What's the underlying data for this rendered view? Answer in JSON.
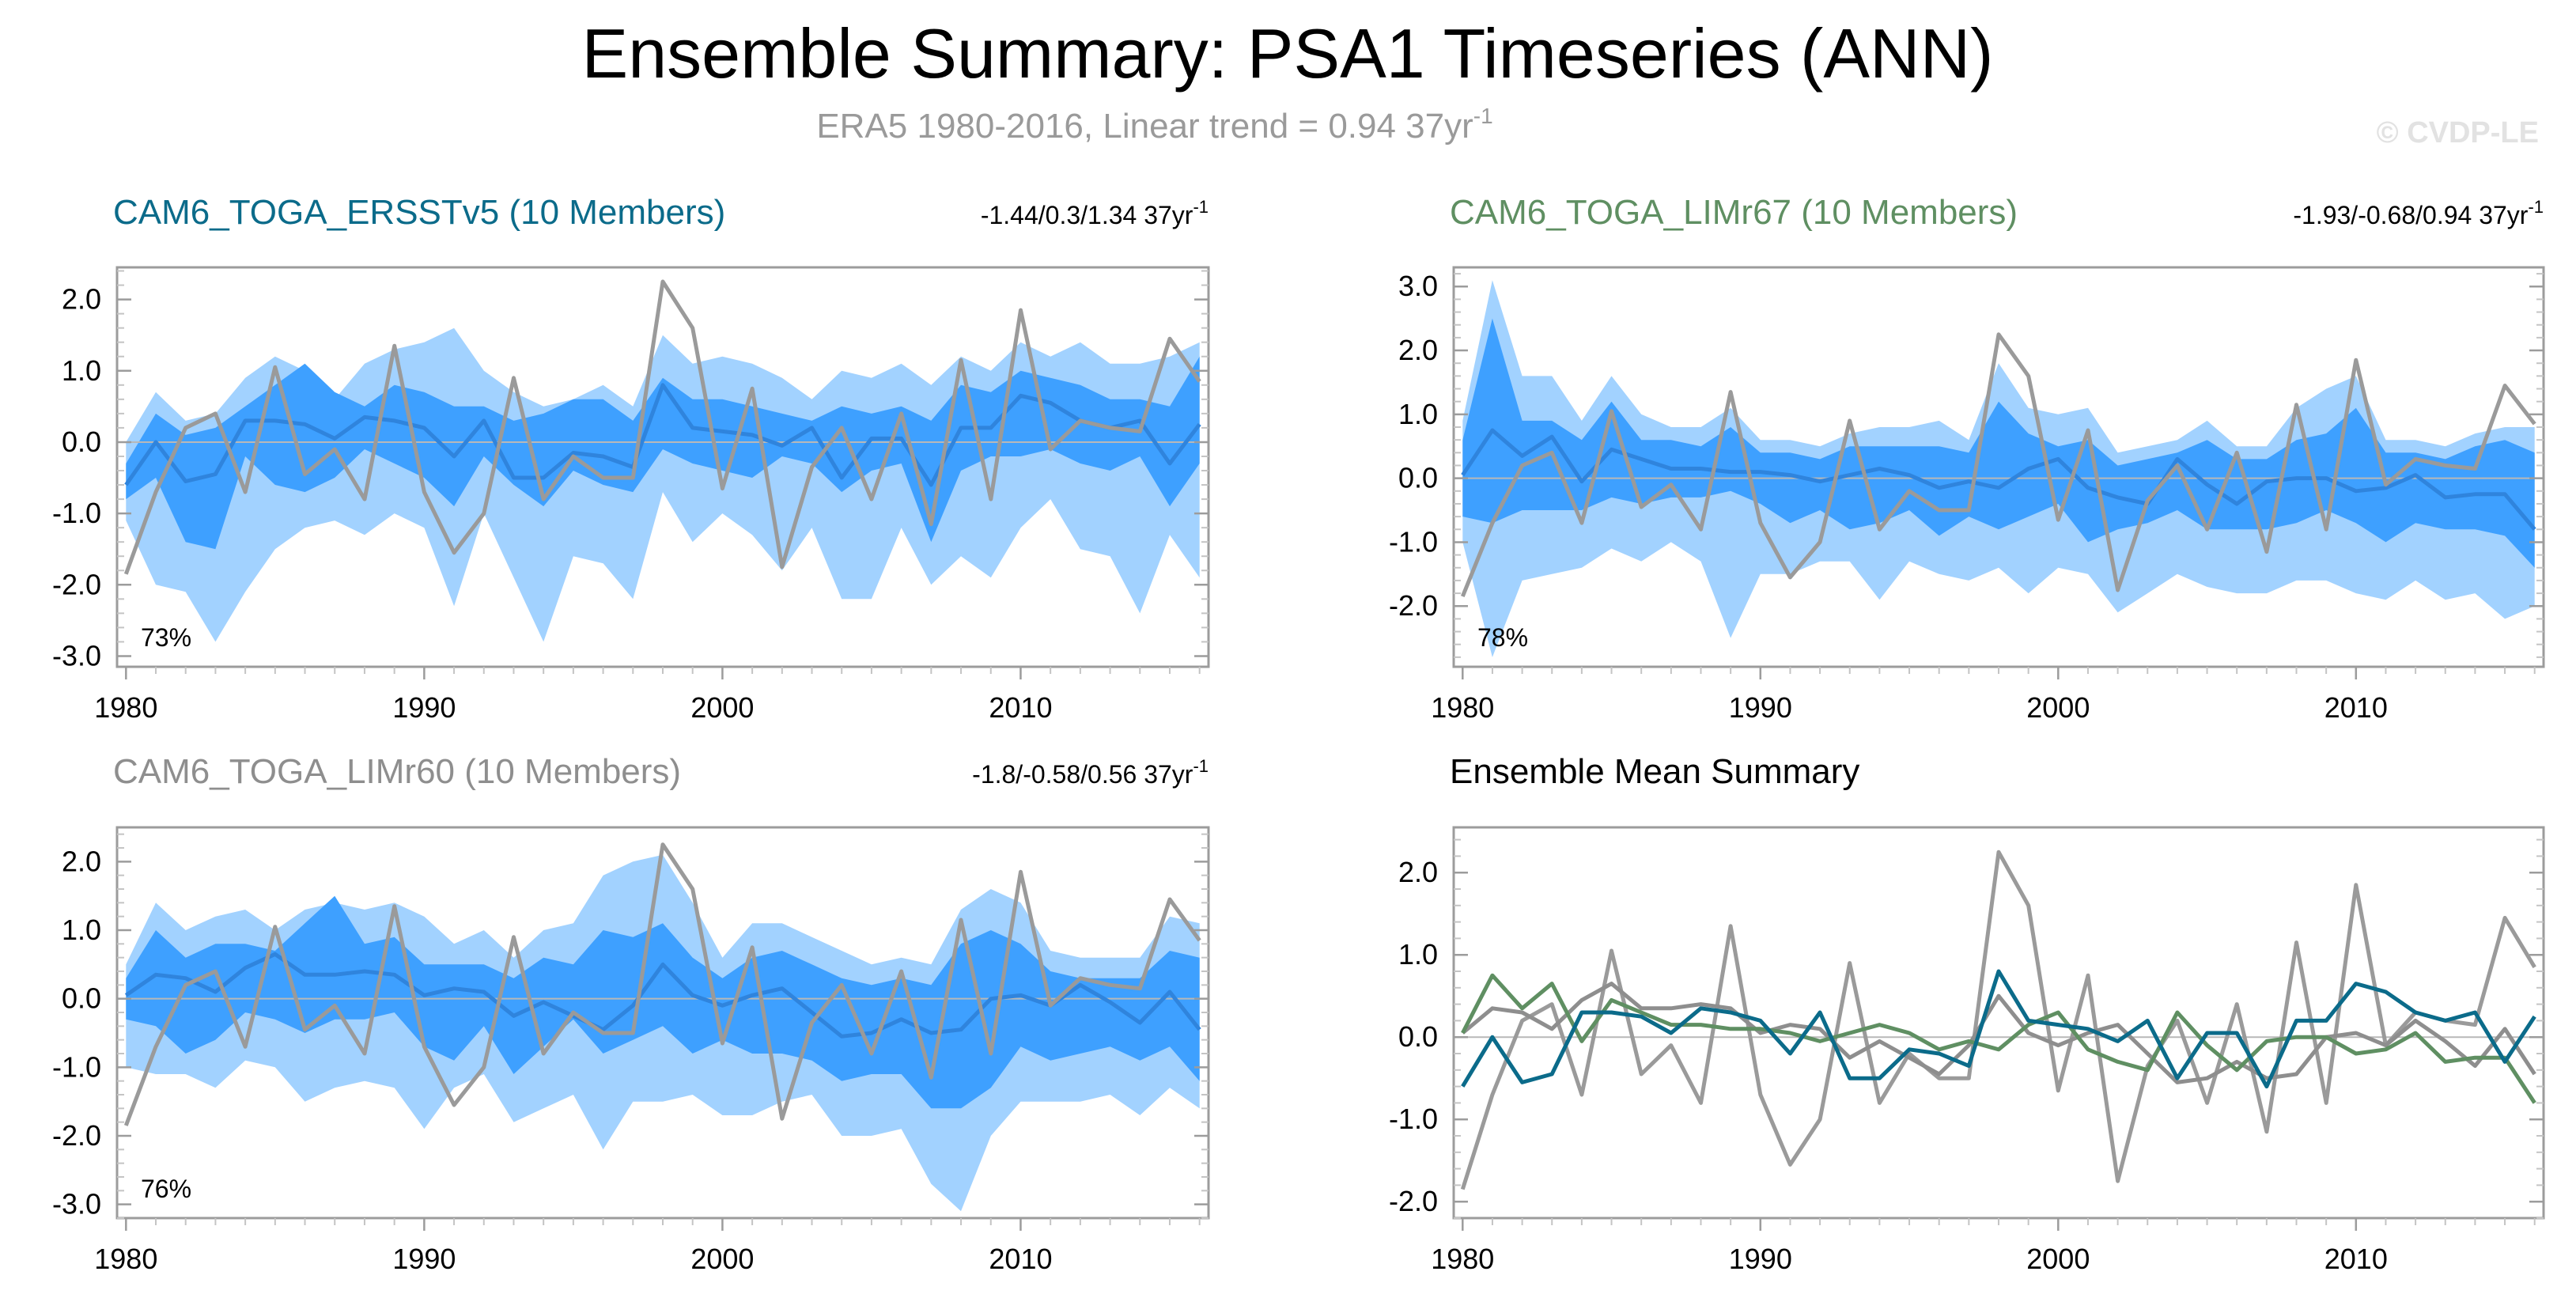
{
  "title": "Ensemble Summary: PSA1 Timeseries (ANN)",
  "subtitle": {
    "text": "ERA5 1980-2016, Linear trend = 0.94 37yr",
    "sup": "-1"
  },
  "watermark": "© CVDP-LE",
  "colors": {
    "outer_band": "#a2d2ff",
    "inner_band": "#3ea0ff",
    "ens_mean_line": "#2f84dd",
    "obs": "#9a9a9a",
    "ersst": "#0b6b8a",
    "limr67": "#5f8f62",
    "limr60": "#8e8e8e",
    "axis": "#9c9c9c"
  },
  "chart_data": [
    {
      "id": "ersst",
      "type": "area",
      "title": "CAM6_TOGA_ERSSTv5 (10 Members)",
      "title_color": "#0b6b8a",
      "trend": "-1.44/0.3/1.34 37yr",
      "trend_sup": "-1",
      "percent": "73%",
      "ylim": [
        -3.15,
        2.45
      ],
      "yticks": [
        "2.0",
        "1.0",
        "0.0",
        "-1.0",
        "-2.0",
        "-3.0"
      ],
      "ytick_values": [
        2,
        1,
        0,
        -1,
        -2,
        -3
      ],
      "xticks": [
        "1980",
        "1990",
        "2000",
        "2010"
      ],
      "xtick_values": [
        1980,
        1990,
        2000,
        2010
      ],
      "xlim": [
        1979.7,
        2016.3
      ],
      "x_start": 1980,
      "outer_upper": [
        0.0,
        0.7,
        0.3,
        0.4,
        0.9,
        1.2,
        1.0,
        0.6,
        1.1,
        1.3,
        1.4,
        1.6,
        1.0,
        0.7,
        0.5,
        0.6,
        0.8,
        0.5,
        1.5,
        1.1,
        1.2,
        1.1,
        0.9,
        0.6,
        1.0,
        0.9,
        1.1,
        0.8,
        1.2,
        1.0,
        1.4,
        1.2,
        1.4,
        1.1,
        1.1,
        1.2,
        1.4
      ],
      "inner_upper": [
        -0.3,
        0.4,
        0.1,
        0.2,
        0.5,
        0.8,
        1.1,
        0.7,
        0.5,
        0.8,
        0.7,
        0.5,
        0.5,
        0.3,
        0.4,
        0.6,
        0.6,
        0.3,
        0.9,
        0.6,
        0.6,
        0.5,
        0.4,
        0.3,
        0.5,
        0.4,
        0.5,
        0.3,
        0.8,
        0.7,
        1.0,
        0.9,
        0.8,
        0.6,
        0.6,
        0.5,
        1.2
      ],
      "inner_lower": [
        -0.8,
        -0.5,
        -1.4,
        -1.5,
        -0.2,
        -0.6,
        -0.7,
        -0.5,
        -0.1,
        -0.3,
        -0.5,
        -0.9,
        -0.2,
        -0.6,
        -0.9,
        -0.4,
        -0.6,
        -0.7,
        -0.1,
        -0.3,
        -0.4,
        -0.5,
        -0.2,
        -0.3,
        -0.7,
        -0.4,
        -0.3,
        -1.4,
        -0.4,
        -0.2,
        -0.2,
        -0.1,
        -0.3,
        -0.4,
        -0.2,
        -0.9,
        -0.3
      ],
      "outer_lower": [
        -1.1,
        -2.0,
        -2.1,
        -2.8,
        -2.1,
        -1.5,
        -1.2,
        -1.1,
        -1.3,
        -1.0,
        -1.2,
        -2.3,
        -1.0,
        -1.9,
        -2.8,
        -1.6,
        -1.7,
        -2.2,
        -0.7,
        -1.4,
        -1.0,
        -1.3,
        -1.8,
        -1.2,
        -2.2,
        -2.2,
        -1.2,
        -2.0,
        -1.6,
        -1.9,
        -1.2,
        -0.8,
        -1.5,
        -1.6,
        -2.4,
        -1.3,
        -1.9
      ],
      "ens_mean": [
        -0.6,
        0.0,
        -0.55,
        -0.45,
        0.3,
        0.3,
        0.25,
        0.05,
        0.35,
        0.3,
        0.2,
        -0.2,
        0.3,
        -0.5,
        -0.5,
        -0.15,
        -0.2,
        -0.35,
        0.8,
        0.2,
        0.15,
        0.1,
        -0.05,
        0.2,
        -0.5,
        0.05,
        0.05,
        -0.6,
        0.2,
        0.2,
        0.65,
        0.55,
        0.3,
        0.2,
        0.3,
        -0.3,
        0.25
      ],
      "series": [
        {
          "name": "ERA5",
          "values": [
            -1.85,
            -0.7,
            0.2,
            0.4,
            -0.7,
            1.05,
            -0.45,
            -0.1,
            -0.8,
            1.35,
            -0.7,
            -1.55,
            -1.0,
            0.9,
            -0.8,
            -0.2,
            -0.5,
            -0.5,
            2.25,
            1.6,
            -0.65,
            0.75,
            -1.75,
            -0.35,
            0.2,
            -0.8,
            0.4,
            -1.15,
            1.15,
            -0.8,
            1.85,
            -0.1,
            0.3,
            0.2,
            0.15,
            1.45,
            0.85
          ]
        }
      ]
    },
    {
      "id": "limr67",
      "type": "area",
      "title": "CAM6_TOGA_LIMr67 (10 Members)",
      "title_color": "#5f8f62",
      "trend": "-1.93/-0.68/0.94 37yr",
      "trend_sup": "-1",
      "percent": "78%",
      "ylim": [
        -2.95,
        3.3
      ],
      "yticks": [
        "3.0",
        "2.0",
        "1.0",
        "0.0",
        "-1.0",
        "-2.0"
      ],
      "ytick_values": [
        3,
        2,
        1,
        0,
        -1,
        -2
      ],
      "xticks": [
        "1980",
        "1990",
        "2000",
        "2010"
      ],
      "xtick_values": [
        1980,
        1990,
        2000,
        2010
      ],
      "xlim": [
        1979.7,
        2016.3
      ],
      "x_start": 1980,
      "outer_upper": [
        0.9,
        3.1,
        1.6,
        1.6,
        0.9,
        1.6,
        1.0,
        0.8,
        0.8,
        1.1,
        0.6,
        0.6,
        0.5,
        0.7,
        0.8,
        0.8,
        0.9,
        0.6,
        1.8,
        1.1,
        1.0,
        1.1,
        0.4,
        0.5,
        0.6,
        0.9,
        0.5,
        0.5,
        1.1,
        1.4,
        1.6,
        0.6,
        0.6,
        0.5,
        0.7,
        0.8,
        0.8
      ],
      "inner_upper": [
        0.6,
        2.5,
        0.9,
        0.9,
        0.6,
        1.2,
        0.6,
        0.6,
        0.5,
        0.8,
        0.4,
        0.4,
        0.3,
        0.5,
        0.5,
        0.5,
        0.5,
        0.4,
        1.2,
        0.7,
        0.5,
        0.6,
        0.2,
        0.3,
        0.4,
        0.6,
        0.3,
        0.3,
        0.6,
        0.7,
        1.1,
        0.4,
        0.4,
        0.3,
        0.5,
        0.6,
        0.4
      ],
      "inner_lower": [
        -0.6,
        -0.7,
        -0.5,
        -0.5,
        -0.5,
        -0.3,
        -0.4,
        -0.3,
        -0.3,
        -0.2,
        -0.4,
        -0.7,
        -0.5,
        -0.8,
        -0.7,
        -0.5,
        -0.9,
        -0.6,
        -0.8,
        -0.6,
        -0.4,
        -1.0,
        -0.8,
        -0.7,
        -0.5,
        -0.8,
        -0.8,
        -0.8,
        -0.7,
        -0.5,
        -0.7,
        -1.0,
        -0.7,
        -0.8,
        -0.8,
        -0.9,
        -1.4
      ],
      "outer_lower": [
        -1.0,
        -2.8,
        -1.6,
        -1.5,
        -1.4,
        -1.1,
        -1.3,
        -1.0,
        -1.3,
        -2.5,
        -1.5,
        -1.5,
        -1.3,
        -1.3,
        -1.9,
        -1.3,
        -1.5,
        -1.6,
        -1.4,
        -1.8,
        -1.4,
        -1.5,
        -2.1,
        -1.8,
        -1.5,
        -1.7,
        -1.8,
        -1.8,
        -1.6,
        -1.6,
        -1.8,
        -1.9,
        -1.6,
        -1.9,
        -1.8,
        -2.2,
        -2.0
      ],
      "ens_mean": [
        0.05,
        0.75,
        0.35,
        0.65,
        -0.05,
        0.45,
        0.3,
        0.15,
        0.15,
        0.1,
        0.1,
        0.05,
        -0.05,
        0.05,
        0.15,
        0.05,
        -0.15,
        -0.05,
        -0.15,
        0.15,
        0.3,
        -0.15,
        -0.3,
        -0.4,
        0.3,
        -0.1,
        -0.4,
        -0.05,
        0.0,
        0.0,
        -0.2,
        -0.15,
        0.05,
        -0.3,
        -0.25,
        -0.25,
        -0.8
      ],
      "series": [
        {
          "name": "ERA5",
          "values": [
            -1.85,
            -0.7,
            0.2,
            0.4,
            -0.7,
            1.05,
            -0.45,
            -0.1,
            -0.8,
            1.35,
            -0.7,
            -1.55,
            -1.0,
            0.9,
            -0.8,
            -0.2,
            -0.5,
            -0.5,
            2.25,
            1.6,
            -0.65,
            0.75,
            -1.75,
            -0.35,
            0.2,
            -0.8,
            0.4,
            -1.15,
            1.15,
            -0.8,
            1.85,
            -0.1,
            0.3,
            0.2,
            0.15,
            1.45,
            0.85
          ]
        }
      ]
    },
    {
      "id": "limr60",
      "type": "area",
      "title": "CAM6_TOGA_LIMr60 (10 Members)",
      "title_color": "#8e8e8e",
      "trend": "-1.8/-0.58/0.56 37yr",
      "trend_sup": "-1",
      "percent": "76%",
      "ylim": [
        -3.2,
        2.5
      ],
      "yticks": [
        "2.0",
        "1.0",
        "0.0",
        "-1.0",
        "-2.0",
        "-3.0"
      ],
      "ytick_values": [
        2,
        1,
        0,
        -1,
        -2,
        -3
      ],
      "xticks": [
        "1980",
        "1990",
        "2000",
        "2010"
      ],
      "xtick_values": [
        1980,
        1990,
        2000,
        2010
      ],
      "xlim": [
        1979.7,
        2016.3
      ],
      "x_start": 1980,
      "outer_upper": [
        0.5,
        1.4,
        1.0,
        1.2,
        1.3,
        1.0,
        1.3,
        1.4,
        1.3,
        1.4,
        1.2,
        0.8,
        1.0,
        0.6,
        1.0,
        1.1,
        1.8,
        2.0,
        2.1,
        1.4,
        0.6,
        1.1,
        1.1,
        0.9,
        0.7,
        0.5,
        0.6,
        0.5,
        1.3,
        1.6,
        1.4,
        0.7,
        0.6,
        0.6,
        0.6,
        1.2,
        1.1
      ],
      "inner_upper": [
        0.3,
        1.0,
        0.6,
        0.8,
        0.8,
        0.7,
        1.1,
        1.5,
        0.8,
        0.9,
        0.5,
        0.5,
        0.5,
        0.3,
        0.6,
        0.5,
        1.0,
        0.9,
        1.1,
        0.6,
        0.3,
        0.6,
        0.7,
        0.5,
        0.3,
        0.2,
        0.3,
        0.2,
        0.8,
        1.0,
        0.8,
        0.4,
        0.3,
        0.3,
        0.3,
        0.7,
        0.6
      ],
      "inner_lower": [
        -0.3,
        -0.4,
        -0.8,
        -0.6,
        -0.2,
        -0.3,
        -0.5,
        -0.3,
        -0.3,
        -0.2,
        -0.7,
        -0.9,
        -0.4,
        -1.1,
        -0.7,
        -0.3,
        -0.8,
        -0.6,
        -0.4,
        -0.8,
        -0.6,
        -0.8,
        -0.8,
        -0.9,
        -1.2,
        -1.1,
        -1.1,
        -1.6,
        -1.6,
        -1.3,
        -0.7,
        -0.9,
        -0.8,
        -0.7,
        -0.9,
        -0.7,
        -1.2
      ],
      "outer_lower": [
        -1.0,
        -1.1,
        -1.1,
        -1.3,
        -0.9,
        -1.0,
        -1.5,
        -1.3,
        -1.2,
        -1.3,
        -1.9,
        -1.3,
        -1.1,
        -1.8,
        -1.6,
        -1.4,
        -2.2,
        -1.5,
        -1.5,
        -1.4,
        -1.7,
        -1.7,
        -1.5,
        -1.4,
        -2.0,
        -2.0,
        -1.9,
        -2.7,
        -3.1,
        -2.0,
        -1.5,
        -1.5,
        -1.5,
        -1.4,
        -1.7,
        -1.3,
        -1.6
      ],
      "ens_mean": [
        0.05,
        0.35,
        0.3,
        0.1,
        0.45,
        0.65,
        0.35,
        0.35,
        0.4,
        0.35,
        0.05,
        0.15,
        0.1,
        -0.25,
        -0.05,
        -0.25,
        -0.45,
        -0.1,
        0.5,
        0.05,
        -0.1,
        0.05,
        0.15,
        -0.2,
        -0.55,
        -0.5,
        -0.3,
        -0.5,
        -0.45,
        0.0,
        0.05,
        -0.1,
        0.2,
        -0.05,
        -0.35,
        0.1,
        -0.45
      ],
      "series": [
        {
          "name": "ERA5",
          "values": [
            -1.85,
            -0.7,
            0.2,
            0.4,
            -0.7,
            1.05,
            -0.45,
            -0.1,
            -0.8,
            1.35,
            -0.7,
            -1.55,
            -1.0,
            0.9,
            -0.8,
            -0.2,
            -0.5,
            -0.5,
            2.25,
            1.6,
            -0.65,
            0.75,
            -1.75,
            -0.35,
            0.2,
            -0.8,
            0.4,
            -1.15,
            1.15,
            -0.8,
            1.85,
            -0.1,
            0.3,
            0.2,
            0.15,
            1.45,
            0.85
          ]
        }
      ]
    },
    {
      "id": "mean",
      "type": "line",
      "title": "Ensemble Mean Summary",
      "title_color": "#000000",
      "ylim": [
        -2.2,
        2.55
      ],
      "yticks": [
        "2.0",
        "1.0",
        "0.0",
        "-1.0",
        "-2.0"
      ],
      "ytick_values": [
        2,
        1,
        0,
        -1,
        -2
      ],
      "xticks": [
        "1980",
        "1990",
        "2000",
        "2010"
      ],
      "xtick_values": [
        1980,
        1990,
        2000,
        2010
      ],
      "xlim": [
        1979.7,
        2016.3
      ],
      "x_start": 1980,
      "series": [
        {
          "name": "ERA5",
          "color": "#9a9a9a",
          "values": [
            -1.85,
            -0.7,
            0.2,
            0.4,
            -0.7,
            1.05,
            -0.45,
            -0.1,
            -0.8,
            1.35,
            -0.7,
            -1.55,
            -1.0,
            0.9,
            -0.8,
            -0.2,
            -0.5,
            -0.5,
            2.25,
            1.6,
            -0.65,
            0.75,
            -1.75,
            -0.35,
            0.2,
            -0.8,
            0.4,
            -1.15,
            1.15,
            -0.8,
            1.85,
            -0.1,
            0.3,
            0.2,
            0.15,
            1.45,
            0.85
          ]
        },
        {
          "name": "CAM6_TOGA_LIMr60",
          "color": "#8e8e8e",
          "values": [
            0.05,
            0.35,
            0.3,
            0.1,
            0.45,
            0.65,
            0.35,
            0.35,
            0.4,
            0.35,
            0.05,
            0.15,
            0.1,
            -0.25,
            -0.05,
            -0.25,
            -0.45,
            -0.1,
            0.5,
            0.05,
            -0.1,
            0.05,
            0.15,
            -0.2,
            -0.55,
            -0.5,
            -0.3,
            -0.5,
            -0.45,
            0.0,
            0.05,
            -0.1,
            0.2,
            -0.05,
            -0.35,
            0.1,
            -0.45
          ]
        },
        {
          "name": "CAM6_TOGA_LIMr67",
          "color": "#5f8f62",
          "values": [
            0.05,
            0.75,
            0.35,
            0.65,
            -0.05,
            0.45,
            0.3,
            0.15,
            0.15,
            0.1,
            0.1,
            0.05,
            -0.05,
            0.05,
            0.15,
            0.05,
            -0.15,
            -0.05,
            -0.15,
            0.15,
            0.3,
            -0.15,
            -0.3,
            -0.4,
            0.3,
            -0.1,
            -0.4,
            -0.05,
            0.0,
            0.0,
            -0.2,
            -0.15,
            0.05,
            -0.3,
            -0.25,
            -0.25,
            -0.8
          ]
        },
        {
          "name": "CAM6_TOGA_ERSSTv5",
          "color": "#0b6b8a",
          "values": [
            -0.6,
            0.0,
            -0.55,
            -0.45,
            0.3,
            0.3,
            0.25,
            0.05,
            0.35,
            0.3,
            0.2,
            -0.2,
            0.3,
            -0.5,
            -0.5,
            -0.15,
            -0.2,
            -0.35,
            0.8,
            0.2,
            0.15,
            0.1,
            -0.05,
            0.2,
            -0.5,
            0.05,
            0.05,
            -0.6,
            0.2,
            0.2,
            0.65,
            0.55,
            0.3,
            0.2,
            0.3,
            -0.3,
            0.25
          ]
        }
      ]
    }
  ]
}
